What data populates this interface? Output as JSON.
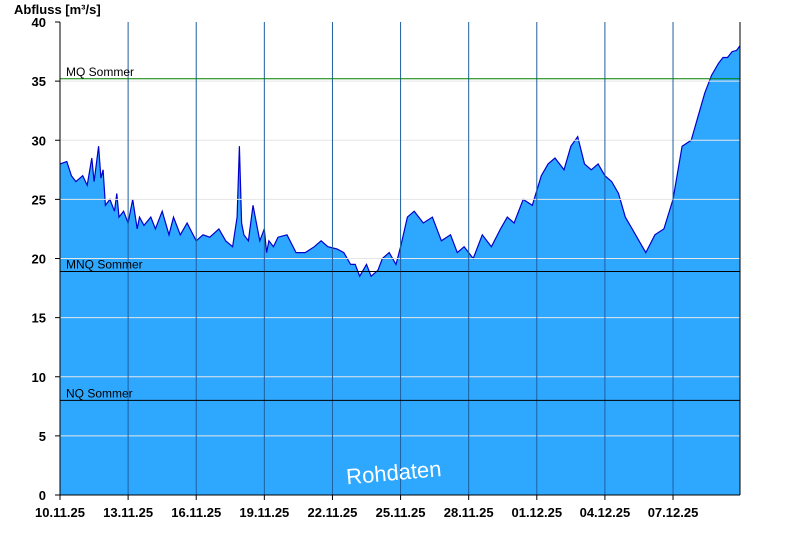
{
  "chart_data": {
    "type": "area",
    "ylabel": "Abfluss [m³/s]",
    "ylim": [
      0,
      40
    ],
    "yticks": [
      0,
      5,
      10,
      15,
      20,
      25,
      30,
      35,
      40
    ],
    "x_start": "10.11.25",
    "x_end": "09.12.25",
    "xticks": [
      "10.11.25",
      "13.11.25",
      "16.11.25",
      "19.11.25",
      "22.11.25",
      "25.11.25",
      "28.11.25",
      "01.12.25",
      "04.12.25",
      "07.12.25"
    ],
    "reference_lines": [
      {
        "label": "MQ Sommer",
        "value": 35.2,
        "color": "#008000"
      },
      {
        "label": "MNQ Sommer",
        "value": 18.9,
        "color": "#000000"
      },
      {
        "label": "NQ Sommer",
        "value": 8.0,
        "color": "#000000"
      }
    ],
    "series": [
      {
        "color_fill": "#2ea8ff",
        "color_line": "#0000cc",
        "x_days": [
          0,
          0.3,
          0.5,
          0.7,
          1.0,
          1.2,
          1.4,
          1.5,
          1.7,
          1.8,
          1.9,
          2.0,
          2.2,
          2.4,
          2.5,
          2.6,
          2.8,
          3.0,
          3.2,
          3.4,
          3.5,
          3.7,
          4.0,
          4.2,
          4.5,
          4.8,
          5.0,
          5.3,
          5.6,
          6.0,
          6.3,
          6.6,
          7.0,
          7.3,
          7.6,
          7.8,
          7.9,
          8.0,
          8.1,
          8.3,
          8.5,
          8.8,
          9.0,
          9.1,
          9.2,
          9.4,
          9.6,
          10.0,
          10.4,
          10.8,
          11.2,
          11.5,
          11.8,
          12.2,
          12.5,
          12.8,
          13.0,
          13.2,
          13.5,
          13.7,
          14.0,
          14.2,
          14.5,
          14.8,
          15.0,
          15.3,
          15.6,
          16.0,
          16.4,
          16.8,
          17.2,
          17.5,
          17.8,
          18.2,
          18.6,
          19.0,
          19.4,
          19.7,
          20.0,
          20.4,
          20.8,
          21.2,
          21.5,
          21.8,
          22.2,
          22.5,
          22.8,
          23.1,
          23.4,
          23.7,
          24.0,
          24.3,
          24.6,
          24.9,
          25.2,
          25.5,
          25.8,
          26.2,
          26.6,
          27.0,
          27.4,
          27.8,
          28.1,
          28.4,
          28.7,
          29.0,
          29.2,
          29.4,
          29.6,
          29.8,
          29.95
        ],
        "y": [
          28.0,
          28.2,
          27.0,
          26.5,
          27.0,
          26.2,
          28.5,
          26.5,
          29.5,
          26.8,
          27.5,
          24.5,
          25.0,
          24.0,
          25.5,
          23.5,
          24.0,
          23.0,
          25.0,
          22.5,
          23.5,
          22.8,
          23.5,
          22.5,
          24.0,
          22.0,
          23.5,
          22.0,
          23.0,
          21.5,
          22.0,
          21.8,
          22.5,
          21.5,
          21.0,
          23.5,
          29.5,
          23.0,
          22.0,
          21.5,
          24.5,
          21.5,
          22.5,
          20.5,
          21.5,
          21.0,
          21.8,
          22.0,
          20.5,
          20.5,
          21.0,
          21.5,
          21.0,
          20.8,
          20.5,
          19.5,
          19.5,
          18.5,
          19.5,
          18.5,
          19.0,
          20.0,
          20.5,
          19.5,
          21.0,
          23.5,
          24.0,
          23.0,
          23.5,
          21.5,
          22.0,
          20.5,
          21.0,
          20.0,
          22.0,
          21.0,
          22.5,
          23.5,
          23.0,
          25.0,
          24.5,
          27.0,
          28.0,
          28.5,
          27.5,
          29.5,
          30.3,
          28.0,
          27.5,
          28.0,
          27.0,
          26.5,
          25.5,
          23.5,
          22.5,
          21.5,
          20.5,
          22.0,
          22.5,
          25.0,
          29.5,
          30.0,
          32.0,
          34.0,
          35.5,
          36.5,
          37.0,
          37.0,
          37.5,
          37.6,
          38.0
        ]
      }
    ]
  },
  "watermark": "Rohdaten"
}
